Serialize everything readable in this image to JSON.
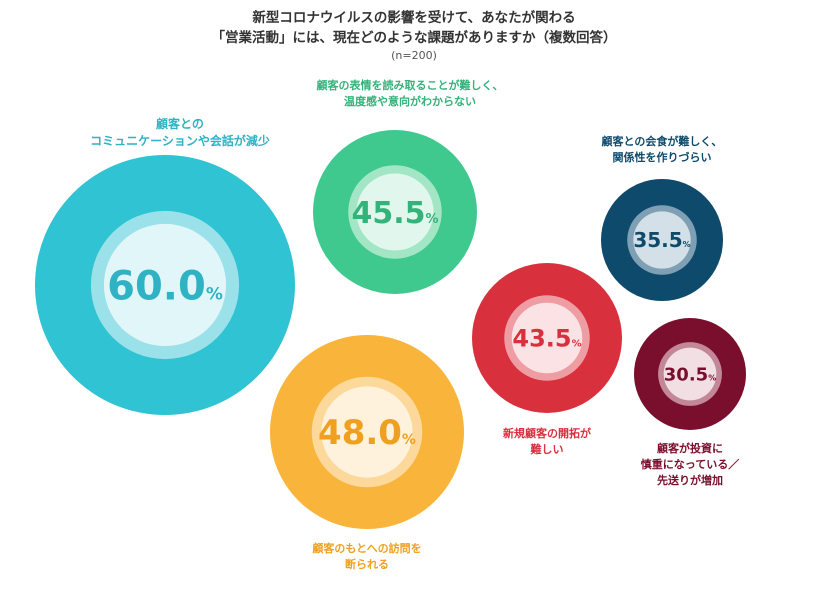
{
  "title": {
    "line1": "新型コロナウイルスの影響を受けて、あなたが関わる",
    "line2": "「営業活動」には、現在どのような課題がありますか（複数回答）",
    "sample": "(n=200)"
  },
  "chart_data": {
    "type": "bubble",
    "unit": "%",
    "items": [
      {
        "label": [
          "顧客との",
          "コミュニケーションや会話が減少"
        ],
        "value": 60.0,
        "display": "60.0",
        "color": "#2fc3d3",
        "inner": "#9be1ea",
        "core": "#e1f6f9",
        "text": "#2fb3c4"
      },
      {
        "label": [
          "顧客の表情を読み取ることが難しく、",
          "温度感や意向がわからない"
        ],
        "value": 45.5,
        "display": "45.5",
        "color": "#3fc98e",
        "inner": "#a3e6c6",
        "core": "#e1f6ec",
        "text": "#33b27a"
      },
      {
        "label": [
          "顧客との会食が難しく、",
          "関係性を作りづらい"
        ],
        "value": 35.5,
        "display": "35.5",
        "color": "#0e4a6c",
        "inner": "#7f9fb4",
        "core": "#d3e0e8",
        "text": "#0e4a6c"
      },
      {
        "label": [
          "新規顧客の開拓が",
          "難しい"
        ],
        "value": 43.5,
        "display": "43.5",
        "color": "#d9303d",
        "inner": "#ee9da3",
        "core": "#fbe3e5",
        "text": "#d9303d"
      },
      {
        "label": [
          "顧客のもとへの訪問を",
          "断られる"
        ],
        "value": 48.0,
        "display": "48.0",
        "color": "#f9b43b",
        "inner": "#fcd89a",
        "core": "#fef2dc",
        "text": "#f0a020"
      },
      {
        "label": [
          "顧客が投資に",
          "慎重になっている／",
          "先送りが増加"
        ],
        "value": 30.5,
        "display": "30.5",
        "color": "#7a0f2d",
        "inner": "#c28897",
        "core": "#f1dfe4",
        "text": "#7a0f2d"
      }
    ]
  }
}
